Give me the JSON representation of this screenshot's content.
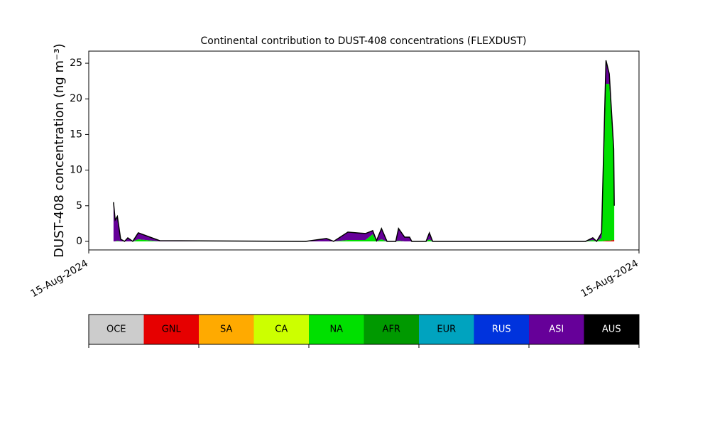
{
  "chart_data": {
    "type": "stacked_area",
    "title": "Continental contribution to DUST-408 concentrations (FLEXDUST)",
    "y_label": "DUST-408 concentration (ng m⁻³)",
    "x": [
      4.5,
      4.8,
      5.2,
      5.8,
      6.5,
      7.1,
      8.0,
      9.0,
      12.9,
      39.4,
      43.2,
      44.5,
      47.1,
      50.3,
      51.6,
      52.3,
      53.2,
      54.2,
      55.8,
      56.3,
      57.4,
      58.3,
      58.7,
      61.3,
      61.9,
      62.5,
      90.3,
      91.6,
      92.3,
      93.2,
      94.0,
      94.6,
      95.4,
      95.5
    ],
    "xlim": [
      0,
      100
    ],
    "xticks": [
      {
        "value": 0,
        "label": "15-Aug-2024"
      },
      {
        "value": 100,
        "label": "15-Aug-2024"
      }
    ],
    "ylim": [
      -1.2,
      26.7
    ],
    "yticks": [
      0,
      5,
      10,
      15,
      20,
      25
    ],
    "series": [
      {
        "name": "OCE",
        "color": "#cccccc",
        "values": [
          0,
          0,
          0,
          0,
          0,
          0,
          0,
          0,
          0,
          0,
          0,
          0,
          0,
          0,
          0,
          0,
          0,
          0,
          0,
          0,
          0,
          0,
          0,
          0,
          0,
          0,
          0,
          0,
          0,
          0,
          0,
          0,
          0,
          0
        ]
      },
      {
        "name": "GNL",
        "color": "#e60000",
        "values": [
          0,
          0,
          0,
          0,
          0,
          0,
          0,
          0,
          0,
          0,
          0,
          0,
          0,
          0,
          0,
          0,
          0,
          0,
          0,
          0,
          0,
          0,
          0,
          0,
          0,
          0,
          0,
          0,
          0,
          0,
          0.1,
          0.1,
          0.2,
          0.2
        ]
      },
      {
        "name": "SA",
        "color": "#ffaa00",
        "values": [
          0,
          0,
          0,
          0,
          0,
          0,
          0,
          0,
          0,
          0,
          0,
          0,
          0,
          0,
          0,
          0,
          0,
          0,
          0,
          0,
          0,
          0,
          0,
          0,
          0,
          0,
          0,
          0,
          0,
          0,
          0,
          0,
          0,
          0
        ]
      },
      {
        "name": "CA",
        "color": "#ccff00",
        "values": [
          0,
          0,
          0,
          0,
          0,
          0,
          0,
          0,
          0,
          0,
          0,
          0,
          0,
          0,
          0,
          0,
          0,
          0,
          0,
          0,
          0,
          0,
          0,
          0,
          0,
          0,
          0,
          0,
          0,
          0,
          0,
          0,
          0,
          0
        ]
      },
      {
        "name": "NA",
        "color": "#00e000",
        "values": [
          0,
          0,
          0.1,
          0,
          0,
          0,
          0,
          0.3,
          0,
          0,
          0,
          0,
          0.2,
          0.2,
          1.0,
          0,
          0.3,
          0,
          0,
          0.1,
          0,
          0,
          0,
          0,
          0.3,
          0,
          0,
          0.2,
          0,
          0.5,
          22,
          22,
          12,
          4.8
        ]
      },
      {
        "name": "AFR",
        "color": "#009900",
        "values": [
          0,
          0,
          0,
          0,
          0,
          0,
          0,
          0,
          0,
          0,
          0,
          0,
          0,
          0,
          0,
          0,
          0,
          0,
          0,
          0,
          0,
          0,
          0,
          0,
          0,
          0,
          0,
          0,
          0,
          0,
          0,
          0,
          0,
          0
        ]
      },
      {
        "name": "EUR",
        "color": "#00a3bf",
        "values": [
          0,
          0,
          0,
          0,
          0,
          0,
          0,
          0,
          0,
          0,
          0,
          0,
          0,
          0,
          0,
          0,
          0,
          0,
          0,
          0,
          0,
          0,
          0,
          0,
          0,
          0,
          0,
          0,
          0,
          0,
          0,
          0,
          0,
          0
        ]
      },
      {
        "name": "RUS",
        "color": "#0033dd",
        "values": [
          0,
          0,
          0,
          0,
          0,
          0,
          0,
          0,
          0,
          0,
          0,
          0,
          0,
          0,
          0,
          0,
          0,
          0,
          0,
          0,
          0,
          0,
          0,
          0,
          0,
          0,
          0,
          0,
          0,
          0,
          0,
          0,
          0,
          0
        ]
      },
      {
        "name": "ASI",
        "color": "#660099",
        "values": [
          5.5,
          3.0,
          3.4,
          0.3,
          0,
          0.5,
          0,
          0.9,
          0.1,
          0,
          0.4,
          0,
          1.1,
          0.9,
          0.5,
          0.1,
          1.5,
          0,
          0,
          1.7,
          0.6,
          0.6,
          0,
          0,
          0.9,
          0,
          0,
          0.3,
          0,
          0.7,
          3.3,
          1.4,
          0.8,
          0
        ]
      },
      {
        "name": "AUS",
        "color": "#000000",
        "values": [
          0,
          0,
          0,
          0,
          0,
          0,
          0,
          0,
          0,
          0,
          0,
          0,
          0,
          0,
          0,
          0,
          0,
          0,
          0,
          0,
          0,
          0,
          0,
          0,
          0,
          0,
          0,
          0,
          0,
          0,
          0,
          0,
          0,
          0
        ]
      }
    ]
  }
}
